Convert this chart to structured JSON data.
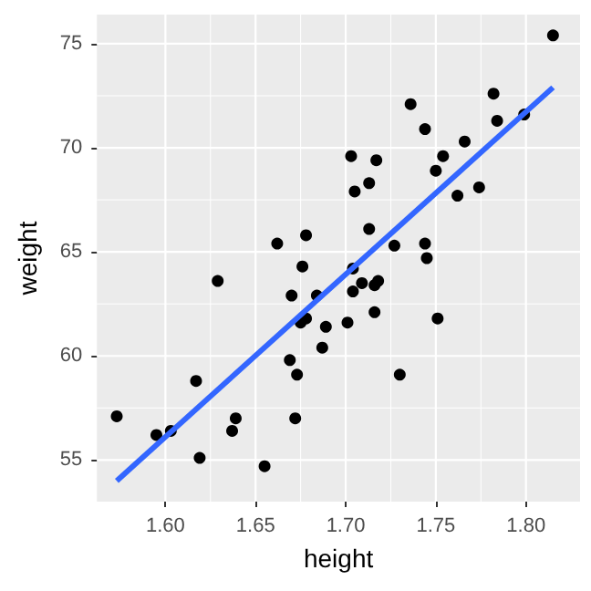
{
  "chart_data": {
    "type": "scatter",
    "xlabel": "height",
    "ylabel": "weight",
    "xlim": [
      1.562,
      1.83
    ],
    "ylim": [
      53.0,
      76.4
    ],
    "xticks": [
      {
        "value": 1.6,
        "label": "1.60"
      },
      1.65,
      {
        "value": 1.7,
        "label": "1.70"
      },
      1.75,
      {
        "value": 1.8,
        "label": "1.80"
      }
    ],
    "yticks": [
      55,
      60,
      65,
      70,
      75
    ],
    "grid": true,
    "marker": "circle",
    "series": [
      {
        "color": "#000000",
        "x": [
          1.815,
          1.782,
          1.736,
          1.744,
          1.784,
          1.799,
          1.703,
          1.717,
          1.766,
          1.754,
          1.75,
          1.713,
          1.705,
          1.762,
          1.774,
          1.662,
          1.678,
          1.713,
          1.727,
          1.744,
          1.745,
          1.676,
          1.629,
          1.704,
          1.709,
          1.704,
          1.716,
          1.718,
          1.67,
          1.684,
          1.716,
          1.678,
          1.675,
          1.689,
          1.701,
          1.751,
          1.687,
          1.669,
          1.673,
          1.73,
          1.617,
          1.573,
          1.595,
          1.603,
          1.639,
          1.637,
          1.672,
          1.619,
          1.655
        ],
        "values": [
          75.4,
          72.6,
          72.1,
          70.9,
          71.3,
          71.6,
          69.6,
          69.4,
          70.3,
          69.6,
          68.9,
          68.3,
          67.9,
          67.7,
          68.1,
          65.4,
          65.8,
          66.1,
          65.3,
          65.4,
          64.7,
          64.3,
          63.6,
          64.2,
          63.5,
          63.1,
          63.4,
          63.6,
          62.9,
          62.9,
          62.1,
          61.8,
          61.6,
          61.4,
          61.6,
          61.8,
          60.4,
          59.8,
          59.1,
          59.1,
          58.8,
          57.1,
          56.2,
          56.4,
          57.0,
          56.4,
          57.0,
          55.1,
          54.7
        ]
      },
      {
        "type": "line",
        "color": "#3366ff",
        "line_style": "solid",
        "marker": "none",
        "x": [
          1.573,
          1.815
        ],
        "values": [
          54.0,
          72.9
        ]
      }
    ]
  }
}
